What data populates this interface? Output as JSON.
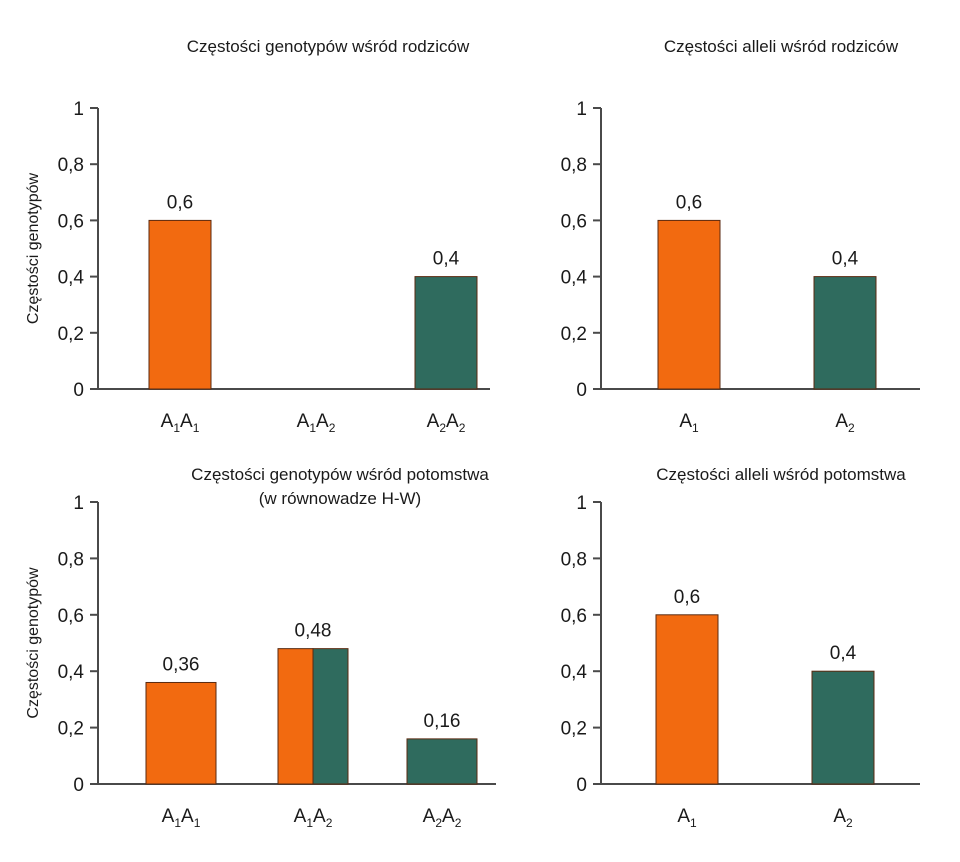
{
  "colors": {
    "orange": "#f26a10",
    "teal": "#2f6b5e"
  },
  "chart_data": [
    {
      "type": "bar",
      "title": [
        "Częstości genotypów wśród rodziców"
      ],
      "ylabel": "Częstości genotypów",
      "ylim": [
        0,
        1
      ],
      "yticks": [
        "0",
        "0,2",
        "0,4",
        "0,6",
        "0,8",
        "1"
      ],
      "categories": [
        {
          "base": "A",
          "sub1": "1",
          "base2": "A",
          "sub2": "1"
        },
        {
          "base": "A",
          "sub1": "1",
          "base2": "A",
          "sub2": "2"
        },
        {
          "base": "A",
          "sub1": "2",
          "base2": "A",
          "sub2": "2"
        }
      ],
      "values": [
        0.6,
        0,
        0.4
      ],
      "value_labels": [
        "0,6",
        "",
        "0,4"
      ],
      "bar_colors": [
        [
          "orange"
        ],
        [],
        [
          "teal"
        ]
      ]
    },
    {
      "type": "bar",
      "title": [
        "Częstości alleli wśród rodziców"
      ],
      "ylabel": "",
      "ylim": [
        0,
        1
      ],
      "yticks": [
        "0",
        "0,2",
        "0,4",
        "0,6",
        "0,8",
        "1"
      ],
      "categories": [
        {
          "base": "A",
          "sub1": "1"
        },
        {
          "base": "A",
          "sub1": "2"
        }
      ],
      "values": [
        0.6,
        0.4
      ],
      "value_labels": [
        "0,6",
        "0,4"
      ],
      "bar_colors": [
        [
          "orange"
        ],
        [
          "teal"
        ]
      ]
    },
    {
      "type": "bar",
      "title": [
        "Częstości genotypów wśród potomstwa",
        "(w równowadze H-W)"
      ],
      "ylabel": "Częstości genotypów",
      "ylim": [
        0,
        1
      ],
      "yticks": [
        "0",
        "0,2",
        "0,4",
        "0,6",
        "0,8",
        "1"
      ],
      "categories": [
        {
          "base": "A",
          "sub1": "1",
          "base2": "A",
          "sub2": "1"
        },
        {
          "base": "A",
          "sub1": "1",
          "base2": "A",
          "sub2": "2"
        },
        {
          "base": "A",
          "sub1": "2",
          "base2": "A",
          "sub2": "2"
        }
      ],
      "values": [
        0.36,
        0.48,
        0.16
      ],
      "value_labels": [
        "0,36",
        "0,48",
        "0,16"
      ],
      "bar_colors": [
        [
          "orange"
        ],
        [
          "orange",
          "teal"
        ],
        [
          "teal"
        ]
      ]
    },
    {
      "type": "bar",
      "title": [
        "Częstości alleli wśród potomstwa"
      ],
      "ylabel": "",
      "ylim": [
        0,
        1
      ],
      "yticks": [
        "0",
        "0,2",
        "0,4",
        "0,6",
        "0,8",
        "1"
      ],
      "categories": [
        {
          "base": "A",
          "sub1": "1"
        },
        {
          "base": "A",
          "sub1": "2"
        }
      ],
      "values": [
        0.6,
        0.4
      ],
      "value_labels": [
        "0,6",
        "0,4"
      ],
      "bar_colors": [
        [
          "orange"
        ],
        [
          "teal"
        ]
      ]
    }
  ]
}
